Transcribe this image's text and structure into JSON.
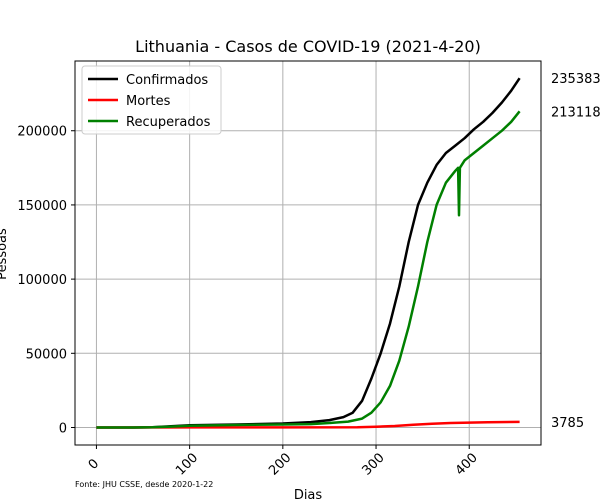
{
  "chart_data": {
    "type": "line",
    "title": "Lithuania - Casos de COVID-19 (2021-4-20)",
    "xlabel": "Dias",
    "ylabel": "Pessoas",
    "xlim": [
      -23,
      477
    ],
    "ylim": [
      -11800,
      247000
    ],
    "x_ticks": [
      0,
      100,
      200,
      300,
      400
    ],
    "y_ticks": [
      0,
      50000,
      100000,
      150000,
      200000
    ],
    "grid": true,
    "legend_position": "top-left",
    "source_note": "Fonte: JHU CSSE, desde 2020-1-22",
    "series": [
      {
        "name": "Confirmados",
        "color": "#000000",
        "end_label": "235383",
        "points": [
          [
            0,
            0
          ],
          [
            40,
            0
          ],
          [
            60,
            100
          ],
          [
            80,
            800
          ],
          [
            100,
            1500
          ],
          [
            150,
            2000
          ],
          [
            200,
            2700
          ],
          [
            230,
            3600
          ],
          [
            250,
            5000
          ],
          [
            265,
            7000
          ],
          [
            275,
            10000
          ],
          [
            285,
            18000
          ],
          [
            295,
            33000
          ],
          [
            305,
            50000
          ],
          [
            315,
            70000
          ],
          [
            325,
            95000
          ],
          [
            335,
            125000
          ],
          [
            345,
            150000
          ],
          [
            355,
            165000
          ],
          [
            365,
            177000
          ],
          [
            375,
            185000
          ],
          [
            385,
            190000
          ],
          [
            395,
            195000
          ],
          [
            405,
            201000
          ],
          [
            415,
            206000
          ],
          [
            425,
            212000
          ],
          [
            435,
            219000
          ],
          [
            445,
            227000
          ],
          [
            454,
            235383
          ]
        ]
      },
      {
        "name": "Mortes",
        "color": "#ff0000",
        "end_label": "3785",
        "points": [
          [
            0,
            0
          ],
          [
            100,
            40
          ],
          [
            200,
            80
          ],
          [
            280,
            200
          ],
          [
            300,
            500
          ],
          [
            320,
            1000
          ],
          [
            340,
            1800
          ],
          [
            360,
            2500
          ],
          [
            380,
            3000
          ],
          [
            400,
            3300
          ],
          [
            420,
            3500
          ],
          [
            454,
            3785
          ]
        ]
      },
      {
        "name": "Recuperados",
        "color": "#008000",
        "end_label": "213118",
        "points": [
          [
            0,
            0
          ],
          [
            40,
            0
          ],
          [
            60,
            100
          ],
          [
            80,
            600
          ],
          [
            100,
            1200
          ],
          [
            150,
            1700
          ],
          [
            200,
            2000
          ],
          [
            230,
            2300
          ],
          [
            250,
            3000
          ],
          [
            270,
            4000
          ],
          [
            285,
            6000
          ],
          [
            295,
            10000
          ],
          [
            305,
            17000
          ],
          [
            315,
            28000
          ],
          [
            325,
            45000
          ],
          [
            335,
            68000
          ],
          [
            345,
            95000
          ],
          [
            355,
            125000
          ],
          [
            365,
            150000
          ],
          [
            375,
            165000
          ],
          [
            385,
            173000
          ],
          [
            388,
            175000
          ],
          [
            389,
            143000
          ],
          [
            390,
            175000
          ],
          [
            395,
            180000
          ],
          [
            405,
            185000
          ],
          [
            415,
            190000
          ],
          [
            425,
            195000
          ],
          [
            435,
            200000
          ],
          [
            445,
            206000
          ],
          [
            454,
            213118
          ]
        ]
      }
    ]
  }
}
